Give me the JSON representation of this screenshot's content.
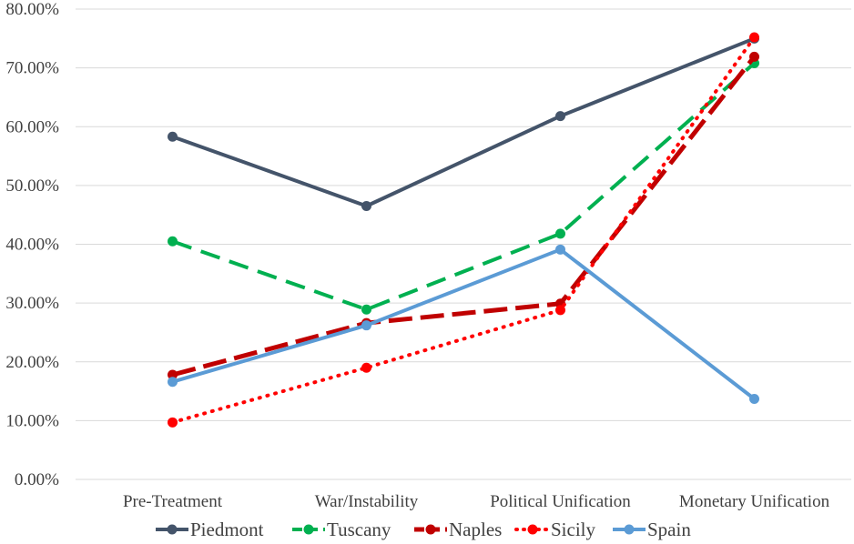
{
  "chart_data": {
    "type": "line",
    "title": "",
    "xlabel": "",
    "ylabel": "",
    "categories": [
      "Pre-Treatment",
      "War/Instability",
      "Political Unification",
      "Monetary Unification"
    ],
    "ylim": [
      0,
      0.8
    ],
    "y_ticks": [
      0,
      0.1,
      0.2,
      0.3,
      0.4,
      0.5,
      0.6,
      0.7,
      0.8
    ],
    "y_tick_labels": [
      "0.00%",
      "10.00%",
      "20.00%",
      "30.00%",
      "40.00%",
      "50.00%",
      "60.00%",
      "70.00%",
      "80.00%"
    ],
    "grid": true,
    "legend_position": "bottom",
    "series": [
      {
        "name": "Piedmont",
        "values": [
          0.583,
          0.465,
          0.618,
          0.75
        ],
        "color": "#44546a",
        "dash": "solid"
      },
      {
        "name": "Tuscany",
        "values": [
          0.405,
          0.289,
          0.418,
          0.708
        ],
        "color": "#00b050",
        "dash": "dashed"
      },
      {
        "name": "Naples",
        "values": [
          0.178,
          0.266,
          0.299,
          0.719
        ],
        "color": "#c00000",
        "dash": "long-dashed"
      },
      {
        "name": "Sicily",
        "values": [
          0.097,
          0.19,
          0.288,
          0.752
        ],
        "color": "#ff0000",
        "dash": "dotted"
      },
      {
        "name": "Spain",
        "values": [
          0.166,
          0.262,
          0.391,
          0.137
        ],
        "color": "#5b9bd5",
        "dash": "solid"
      }
    ]
  }
}
